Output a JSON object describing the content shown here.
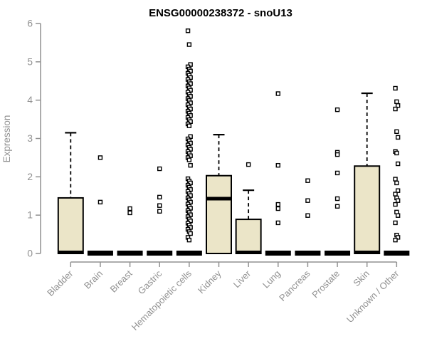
{
  "chart_data": {
    "type": "boxplot",
    "title": "ENSG00000238372 - snoU13",
    "ylabel": "Expression",
    "xlabel": "",
    "ylim": [
      0,
      6
    ],
    "yticks": [
      0,
      1,
      2,
      3,
      4,
      5,
      6
    ],
    "grid": false,
    "legend": false,
    "colors": {
      "box_fill": "#EBE5C8",
      "box_stroke": "#000000",
      "axis": "#919191",
      "tick_label": "#919191",
      "title": "#000000",
      "outlier": "#000000"
    },
    "categories": [
      "Bladder",
      "Brain",
      "Breast",
      "Gastric",
      "Hematopoietic cells",
      "Kidney",
      "Liver",
      "Lung",
      "Pancreas",
      "Prostate",
      "Skin",
      "Unknown / Other"
    ],
    "series": [
      {
        "category": "Bladder",
        "q1": 0,
        "median": 0,
        "q3": 1.45,
        "whisker_low": 0,
        "whisker_high": 3.15,
        "outliers": []
      },
      {
        "category": "Brain",
        "q1": 0,
        "median": 0,
        "q3": 0,
        "whisker_low": 0,
        "whisker_high": 0,
        "outliers": [
          2.5,
          1.34
        ]
      },
      {
        "category": "Breast",
        "q1": 0,
        "median": 0,
        "q3": 0,
        "whisker_low": 0,
        "whisker_high": 0,
        "outliers": [
          1.17,
          1.06
        ]
      },
      {
        "category": "Gastric",
        "q1": 0,
        "median": 0,
        "q3": 0,
        "whisker_low": 0,
        "whisker_high": 0,
        "outliers": [
          2.21,
          1.47,
          1.25,
          1.1
        ]
      },
      {
        "category": "Hematopoietic cells",
        "q1": 0,
        "median": 0,
        "q3": 0,
        "whisker_low": 0,
        "whisker_high": 0,
        "outliers": [
          5.81,
          5.45,
          4.93,
          4.87,
          4.81,
          4.76,
          4.7,
          4.65,
          4.59,
          4.54,
          4.48,
          4.43,
          4.37,
          4.32,
          4.26,
          4.21,
          4.15,
          4.1,
          4.04,
          3.99,
          3.93,
          3.88,
          3.82,
          3.77,
          3.71,
          3.66,
          3.6,
          3.55,
          3.49,
          3.44,
          3.38,
          3.33,
          3.05,
          2.99,
          2.94,
          2.88,
          2.83,
          2.77,
          2.72,
          2.66,
          2.61,
          2.55,
          2.5,
          2.44,
          2.3,
          1.95,
          1.89,
          1.84,
          1.78,
          1.73,
          1.67,
          1.62,
          1.56,
          1.51,
          1.45,
          1.4,
          1.34,
          1.29,
          1.23,
          1.18,
          1.12,
          1.07,
          1.01,
          0.96,
          0.9,
          0.85,
          0.79,
          0.74,
          0.68,
          0.63,
          0.57,
          0.52,
          0.42,
          0.35
        ]
      },
      {
        "category": "Kidney",
        "q1": 0,
        "median": 1.43,
        "q3": 2.03,
        "whisker_low": 0,
        "whisker_high": 3.1,
        "outliers": []
      },
      {
        "category": "Liver",
        "q1": 0,
        "median": 0,
        "q3": 0.89,
        "whisker_low": 0,
        "whisker_high": 1.65,
        "outliers": [
          2.32
        ]
      },
      {
        "category": "Lung",
        "q1": 0,
        "median": 0,
        "q3": 0,
        "whisker_low": 0,
        "whisker_high": 0,
        "outliers": [
          4.17,
          2.3,
          1.28,
          1.17,
          0.8
        ]
      },
      {
        "category": "Pancreas",
        "q1": 0,
        "median": 0,
        "q3": 0,
        "whisker_low": 0,
        "whisker_high": 0,
        "outliers": [
          1.9,
          1.38,
          0.99
        ]
      },
      {
        "category": "Prostate",
        "q1": 0,
        "median": 0,
        "q3": 0,
        "whisker_low": 0,
        "whisker_high": 0,
        "outliers": [
          3.75,
          2.64,
          2.58,
          2.1,
          1.43,
          1.23
        ]
      },
      {
        "category": "Skin",
        "q1": 0,
        "median": 0,
        "q3": 2.28,
        "whisker_low": 0,
        "whisker_high": 4.18,
        "outliers": []
      },
      {
        "category": "Unknown / Other",
        "q1": 0,
        "median": 0,
        "q3": 0,
        "whisker_low": 0,
        "whisker_high": 0,
        "outliers": [
          4.31,
          3.96,
          3.86,
          3.77,
          3.18,
          3.03,
          2.66,
          2.62,
          2.34,
          1.94,
          1.84,
          1.64,
          1.55,
          1.45,
          1.38,
          1.28,
          1.08,
          0.99,
          0.8,
          0.48,
          0.42,
          0.35
        ]
      }
    ]
  }
}
